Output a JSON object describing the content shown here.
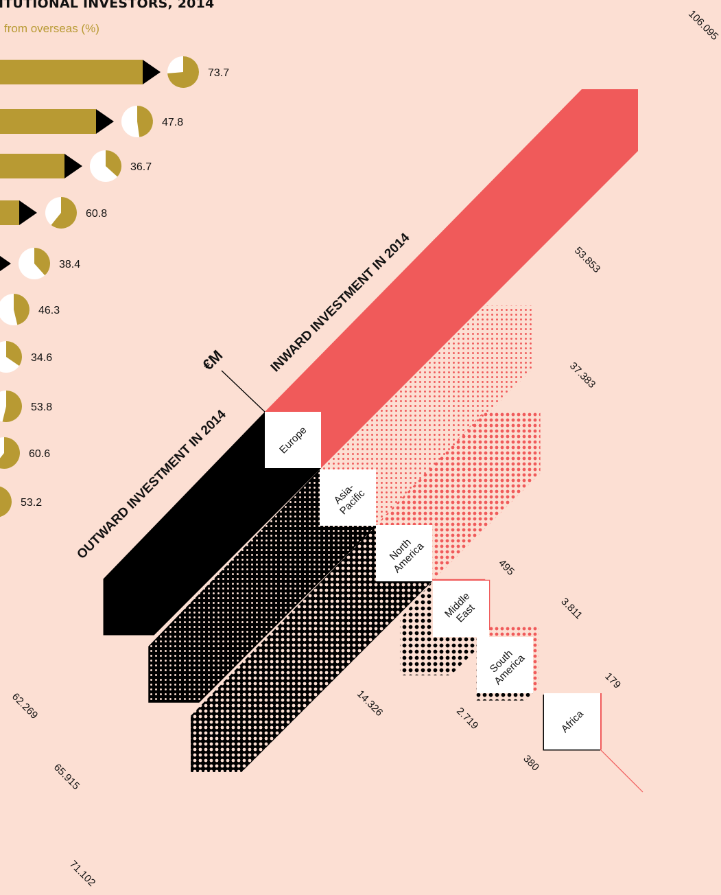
{
  "header": {
    "title": "ITUTIONAL INVESTORS, 2014",
    "subtitle": "from overseas (%)"
  },
  "left_chart": {
    "pct_values": [
      73.7,
      47.8,
      36.7,
      60.8,
      38.4,
      46.3,
      34.6,
      53.8,
      60.6,
      53.2
    ],
    "pct_labels": [
      "73.7",
      "47.8",
      "36.7",
      "60.8",
      "38.4",
      "46.3",
      "34.6",
      "53.8",
      "60.6",
      "53.2"
    ],
    "bar_color": "#b89a33",
    "pie_empty_color": "#ffffff"
  },
  "main_chart": {
    "unit_label": "€M",
    "inward_title": "INWARD INVESTMENT IN 2014",
    "outward_title": "OUTWARD INVESTMENT IN 2014",
    "inward_color": "#f05a5a",
    "outward_color": "#000000",
    "background_color": "#fcdfd3"
  },
  "chart_data": {
    "type": "bar",
    "units": "€M",
    "categories": [
      "Europe",
      "Asia-Pacific",
      "North America",
      "Middle East",
      "South America",
      "Africa"
    ],
    "series": [
      {
        "name": "INWARD INVESTMENT IN 2014",
        "values": [
          106095,
          53853,
          37383,
          495,
          3811,
          179
        ]
      },
      {
        "name": "OUTWARD INVESTMENT IN 2014",
        "values": [
          62269,
          65915,
          71102,
          14326,
          2719,
          380
        ]
      }
    ],
    "labels": {
      "region_box": [
        "Europe",
        "Asia-\nPacific",
        "North\nAmerica",
        "Middle\nEast",
        "South\nAmerica",
        "Africa"
      ],
      "inward": [
        "106.095",
        "53.853",
        "37.383",
        "495",
        "3.811",
        "179"
      ],
      "outward": [
        "62.269",
        "65.915",
        "71.102",
        "14.326",
        "2.719",
        "380"
      ]
    },
    "pie_chart": {
      "series_name": "from overseas (%)",
      "values": [
        73.7,
        47.8,
        36.7,
        60.8,
        38.4,
        46.3,
        34.6,
        53.8,
        60.6,
        53.2
      ]
    }
  }
}
